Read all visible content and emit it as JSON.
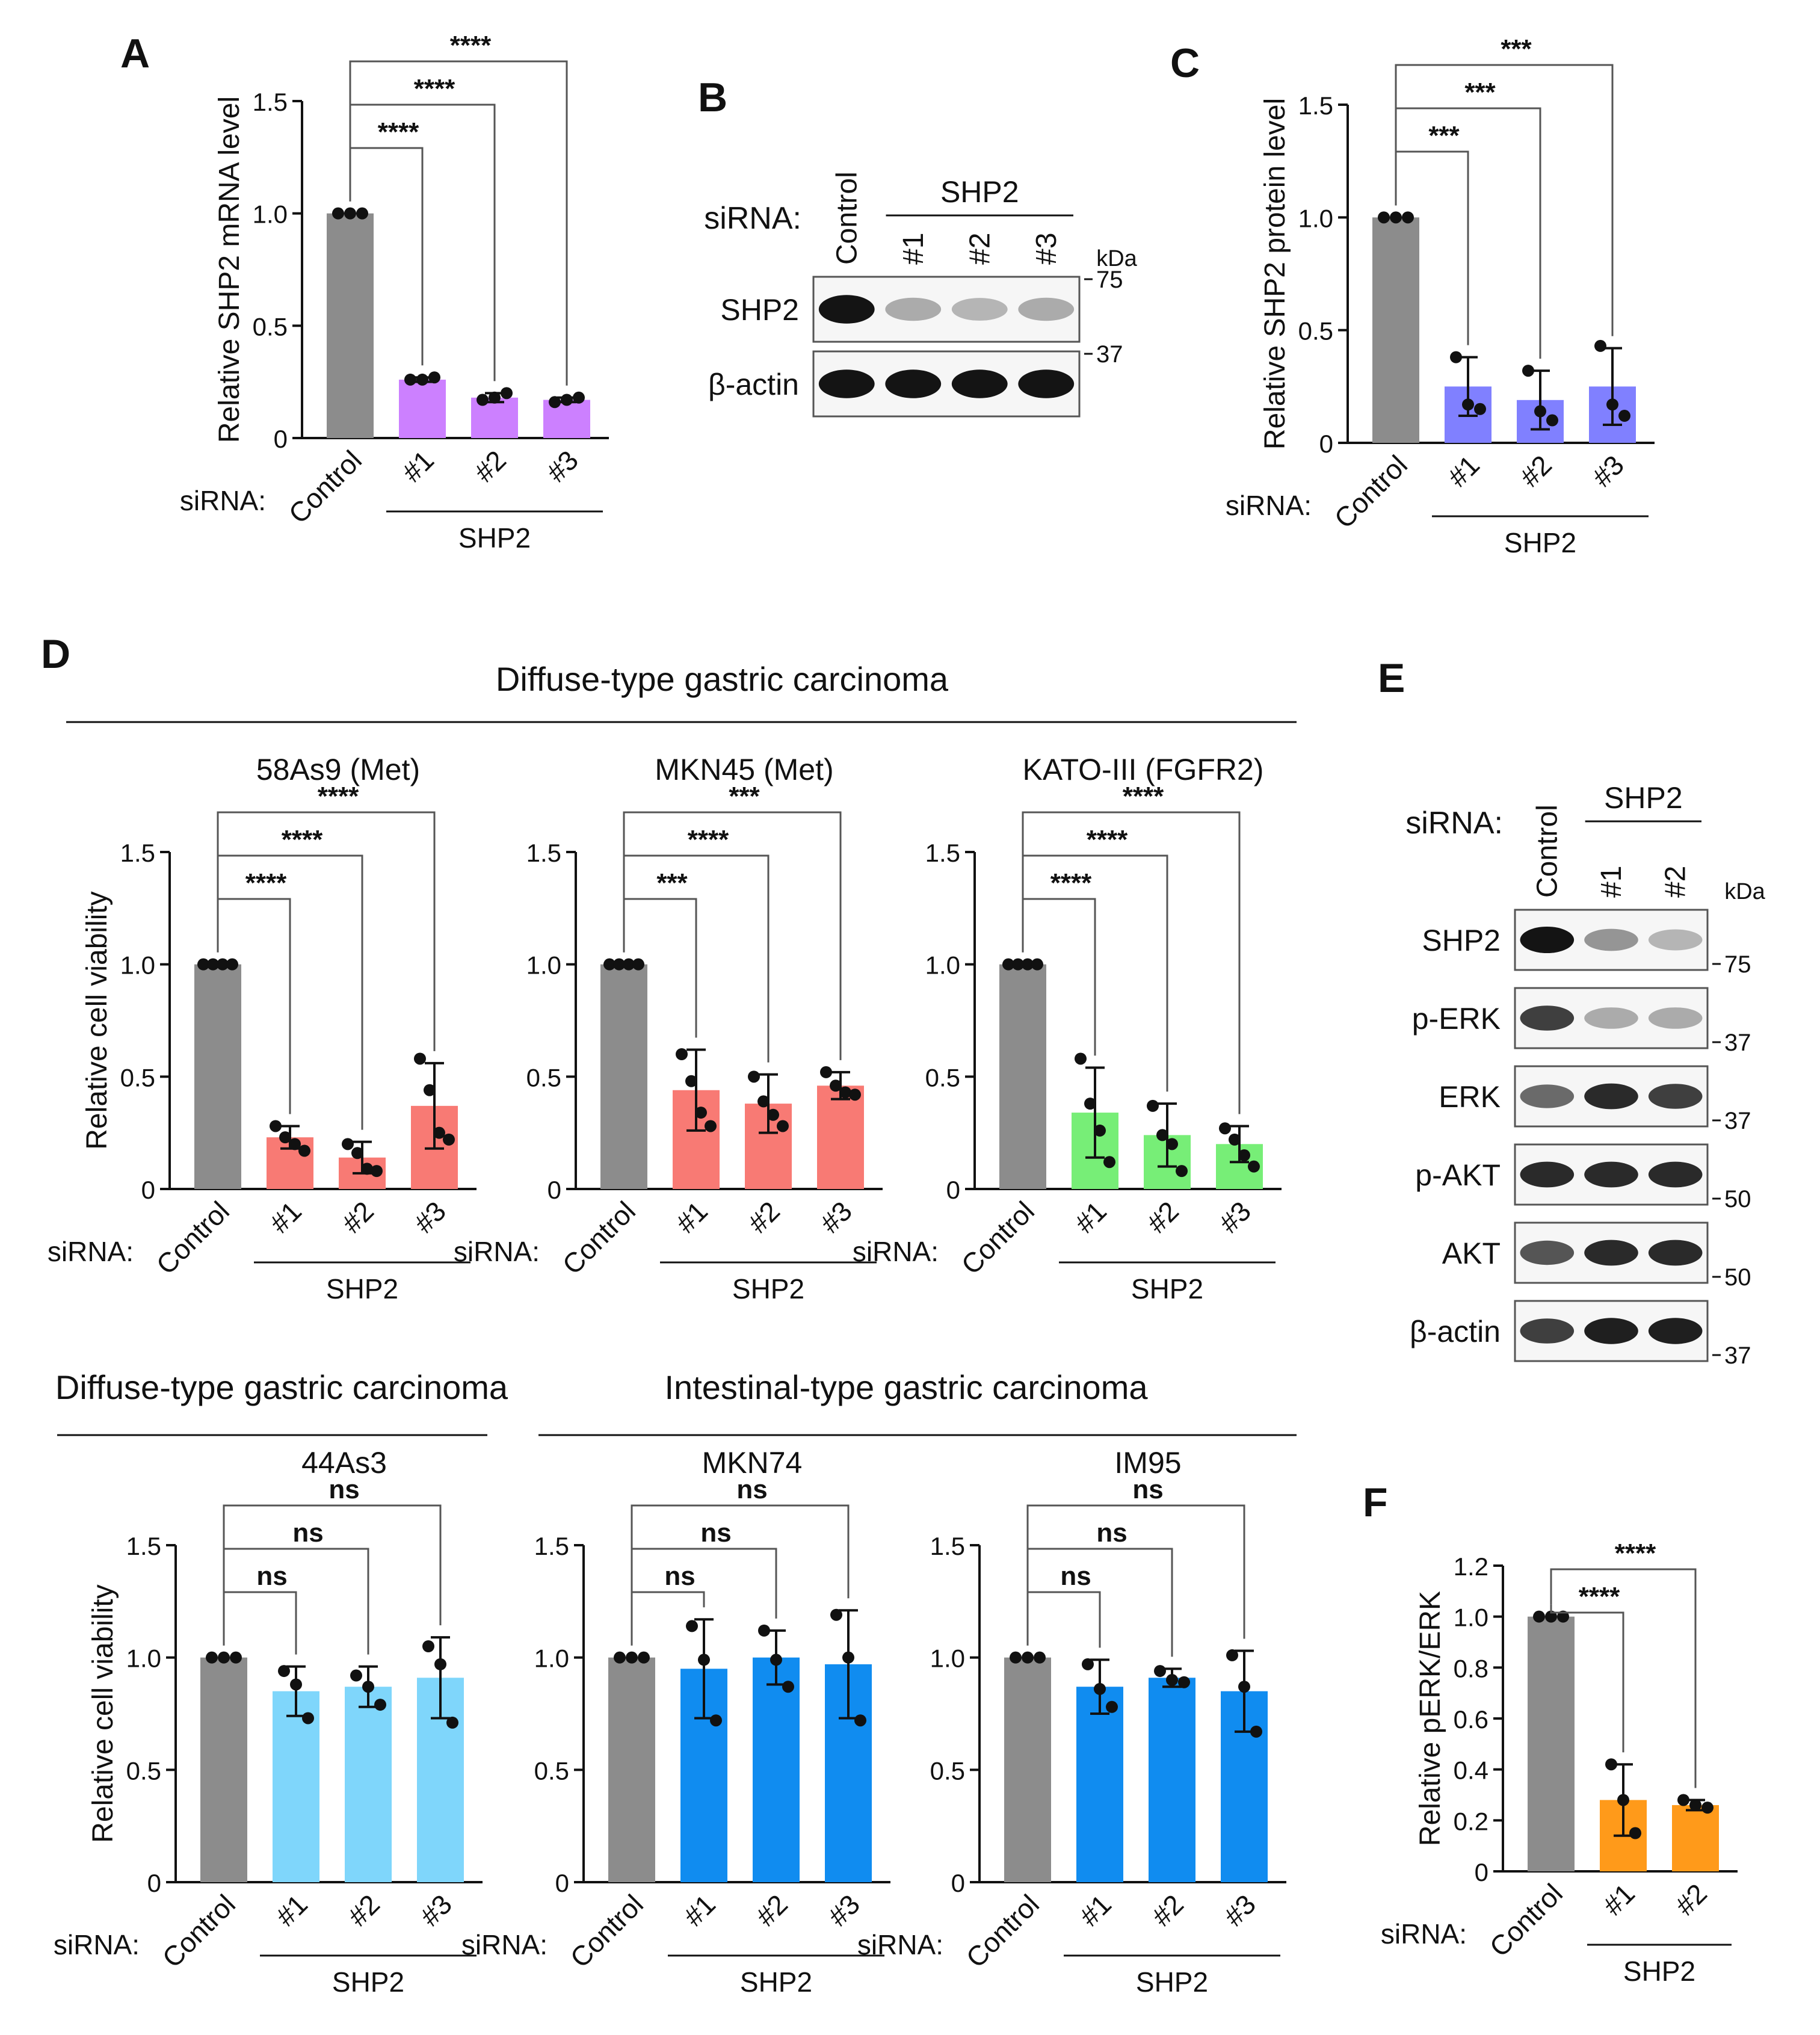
{
  "figure": {
    "panel_labels": {
      "a": "A",
      "b": "B",
      "c": "C",
      "d": "D",
      "e": "E",
      "f": "F"
    },
    "sirna_label": "siRNA:",
    "shp2_label": "SHP2",
    "kda_label": "kDa",
    "section_diffuse": "Diffuse-type gastric carcinoma",
    "section_intestinal": "Intestinal-type gastric carcinoma"
  },
  "colors": {
    "control": "#8c8c8c",
    "A": "#cc80ff",
    "C": "#8080ff",
    "D_top": "#f87a74",
    "D_green": "#77ee77",
    "D_light": "#7fd6fb",
    "D_blue": "#108cf0",
    "F": "#ff9a1a"
  },
  "blot_b": {
    "lanes": [
      "Control",
      "#1",
      "#2",
      "#3"
    ],
    "rows": [
      {
        "label": "SHP2",
        "marker": "75",
        "intensities": [
          1.0,
          0.3,
          0.25,
          0.3
        ]
      },
      {
        "label": "β-actin",
        "marker": "37",
        "intensities": [
          1.0,
          1.0,
          1.0,
          1.0
        ]
      }
    ]
  },
  "blot_e": {
    "lanes": [
      "Control",
      "#1",
      "#2"
    ],
    "rows": [
      {
        "label": "SHP2",
        "marker": "75",
        "intensities": [
          1.0,
          0.4,
          0.25
        ]
      },
      {
        "label": "p-ERK",
        "marker": "37",
        "intensities": [
          0.8,
          0.3,
          0.3
        ]
      },
      {
        "label": "ERK",
        "marker": "37",
        "intensities": [
          0.6,
          0.9,
          0.8
        ]
      },
      {
        "label": "p-AKT",
        "marker": "50",
        "intensities": [
          0.9,
          0.9,
          0.9
        ]
      },
      {
        "label": "AKT",
        "marker": "50",
        "intensities": [
          0.7,
          0.9,
          0.9
        ]
      },
      {
        "label": "β-actin",
        "marker": "37",
        "intensities": [
          0.8,
          0.95,
          0.95
        ]
      }
    ]
  },
  "chart_data": [
    {
      "id": "A",
      "type": "bar",
      "title": "",
      "ylabel": "Relative SHP2 mRNA level",
      "ylim": [
        0,
        1.5
      ],
      "yticks": [
        0,
        0.5,
        1.0,
        1.5
      ],
      "yticklabels": [
        "0",
        "0.5",
        "1.0",
        "1.5"
      ],
      "categories": [
        "Control",
        "#1",
        "#2",
        "#3"
      ],
      "values": [
        1.0,
        0.26,
        0.18,
        0.17
      ],
      "errors": [
        0,
        0.01,
        0.02,
        0.01
      ],
      "points": [
        [
          1.0,
          1.0,
          1.0
        ],
        [
          0.26,
          0.26,
          0.27
        ],
        [
          0.17,
          0.18,
          0.2
        ],
        [
          0.16,
          0.17,
          0.18
        ]
      ],
      "color_key": "A",
      "significance": [
        {
          "target": 1,
          "label": "****"
        },
        {
          "target": 2,
          "label": "****"
        },
        {
          "target": 3,
          "label": "****"
        }
      ]
    },
    {
      "id": "C",
      "type": "bar",
      "title": "",
      "ylabel": "Relative SHP2 protein level",
      "ylim": [
        0,
        1.5
      ],
      "yticks": [
        0,
        0.5,
        1.0,
        1.5
      ],
      "yticklabels": [
        "0",
        "0.5",
        "1.0",
        "1.5"
      ],
      "categories": [
        "Control",
        "#1",
        "#2",
        "#3"
      ],
      "values": [
        1.0,
        0.25,
        0.19,
        0.25
      ],
      "errors": [
        0,
        0.13,
        0.13,
        0.17
      ],
      "points": [
        [
          1.0,
          1.0,
          1.0
        ],
        [
          0.38,
          0.17,
          0.15
        ],
        [
          0.32,
          0.14,
          0.1
        ],
        [
          0.43,
          0.17,
          0.12
        ]
      ],
      "color_key": "C",
      "significance": [
        {
          "target": 1,
          "label": "***"
        },
        {
          "target": 2,
          "label": "***"
        },
        {
          "target": 3,
          "label": "***"
        }
      ]
    },
    {
      "id": "D1",
      "type": "bar",
      "title": "58As9 (Met)",
      "ylabel": "Relative cell viability",
      "ylim": [
        0,
        1.5
      ],
      "yticks": [
        0,
        0.5,
        1.0,
        1.5
      ],
      "yticklabels": [
        "0",
        "0.5",
        "1.0",
        "1.5"
      ],
      "categories": [
        "Control",
        "#1",
        "#2",
        "#3"
      ],
      "values": [
        1.0,
        0.23,
        0.14,
        0.37
      ],
      "errors": [
        0,
        0.05,
        0.07,
        0.19
      ],
      "points": [
        [
          1.0,
          1.0,
          1.0,
          1.0
        ],
        [
          0.28,
          0.23,
          0.2,
          0.17
        ],
        [
          0.2,
          0.16,
          0.09,
          0.08
        ],
        [
          0.58,
          0.44,
          0.25,
          0.22
        ]
      ],
      "color_key": "D_top",
      "significance": [
        {
          "target": 1,
          "label": "****"
        },
        {
          "target": 2,
          "label": "****"
        },
        {
          "target": 3,
          "label": "****"
        }
      ]
    },
    {
      "id": "D2",
      "type": "bar",
      "title": "MKN45 (Met)",
      "ylabel": "",
      "ylim": [
        0,
        1.5
      ],
      "yticks": [
        0,
        0.5,
        1.0,
        1.5
      ],
      "yticklabels": [
        "0",
        "0.5",
        "1.0",
        "1.5"
      ],
      "categories": [
        "Control",
        "#1",
        "#2",
        "#3"
      ],
      "values": [
        1.0,
        0.44,
        0.38,
        0.46
      ],
      "errors": [
        0,
        0.18,
        0.13,
        0.06
      ],
      "points": [
        [
          1.0,
          1.0,
          1.0,
          1.0
        ],
        [
          0.6,
          0.48,
          0.34,
          0.28
        ],
        [
          0.5,
          0.39,
          0.33,
          0.28
        ],
        [
          0.52,
          0.46,
          0.43,
          0.42
        ]
      ],
      "color_key": "D_top",
      "significance": [
        {
          "target": 1,
          "label": "***"
        },
        {
          "target": 2,
          "label": "****"
        },
        {
          "target": 3,
          "label": "***"
        }
      ]
    },
    {
      "id": "D3",
      "type": "bar",
      "title": "KATO-III (FGFR2)",
      "ylabel": "",
      "ylim": [
        0,
        1.5
      ],
      "yticks": [
        0,
        0.5,
        1.0,
        1.5
      ],
      "yticklabels": [
        "0",
        "0.5",
        "1.0",
        "1.5"
      ],
      "categories": [
        "Control",
        "#1",
        "#2",
        "#3"
      ],
      "values": [
        1.0,
        0.34,
        0.24,
        0.2
      ],
      "errors": [
        0,
        0.2,
        0.14,
        0.08
      ],
      "points": [
        [
          1.0,
          1.0,
          1.0,
          1.0
        ],
        [
          0.58,
          0.38,
          0.26,
          0.12
        ],
        [
          0.37,
          0.24,
          0.2,
          0.08
        ],
        [
          0.27,
          0.22,
          0.15,
          0.1
        ]
      ],
      "color_key": "D_green",
      "significance": [
        {
          "target": 1,
          "label": "****"
        },
        {
          "target": 2,
          "label": "****"
        },
        {
          "target": 3,
          "label": "****"
        }
      ]
    },
    {
      "id": "D4",
      "type": "bar",
      "title": "44As3",
      "ylabel": "Relative cell viability",
      "ylim": [
        0,
        1.5
      ],
      "yticks": [
        0,
        0.5,
        1.0,
        1.5
      ],
      "yticklabels": [
        "0",
        "0.5",
        "1.0",
        "1.5"
      ],
      "categories": [
        "Control",
        "#1",
        "#2",
        "#3"
      ],
      "values": [
        1.0,
        0.85,
        0.87,
        0.91
      ],
      "errors": [
        0,
        0.11,
        0.09,
        0.18
      ],
      "points": [
        [
          1.0,
          1.0,
          1.0
        ],
        [
          0.94,
          0.88,
          0.73
        ],
        [
          0.92,
          0.87,
          0.79
        ],
        [
          1.05,
          0.97,
          0.71
        ]
      ],
      "color_key": "D_light",
      "significance": [
        {
          "target": 1,
          "label": "ns"
        },
        {
          "target": 2,
          "label": "ns"
        },
        {
          "target": 3,
          "label": "ns"
        }
      ]
    },
    {
      "id": "D5",
      "type": "bar",
      "title": "MKN74",
      "ylabel": "",
      "ylim": [
        0,
        1.5
      ],
      "yticks": [
        0,
        0.5,
        1.0,
        1.5
      ],
      "yticklabels": [
        "0",
        "0.5",
        "1.0",
        "1.5"
      ],
      "categories": [
        "Control",
        "#1",
        "#2",
        "#3"
      ],
      "values": [
        1.0,
        0.95,
        1.0,
        0.97
      ],
      "errors": [
        0,
        0.22,
        0.12,
        0.24
      ],
      "points": [
        [
          1.0,
          1.0,
          1.0
        ],
        [
          1.14,
          0.99,
          0.72
        ],
        [
          1.12,
          0.99,
          0.87
        ],
        [
          1.19,
          1.0,
          0.72
        ]
      ],
      "color_key": "D_blue",
      "significance": [
        {
          "target": 1,
          "label": "ns"
        },
        {
          "target": 2,
          "label": "ns"
        },
        {
          "target": 3,
          "label": "ns"
        }
      ]
    },
    {
      "id": "D6",
      "type": "bar",
      "title": "IM95",
      "ylabel": "",
      "ylim": [
        0,
        1.5
      ],
      "yticks": [
        0,
        0.5,
        1.0,
        1.5
      ],
      "yticklabels": [
        "0",
        "0.5",
        "1.0",
        "1.5"
      ],
      "categories": [
        "Control",
        "#1",
        "#2",
        "#3"
      ],
      "values": [
        1.0,
        0.87,
        0.91,
        0.85
      ],
      "errors": [
        0,
        0.12,
        0.04,
        0.18
      ],
      "points": [
        [
          1.0,
          1.0,
          1.0
        ],
        [
          0.97,
          0.86,
          0.78
        ],
        [
          0.94,
          0.9,
          0.89
        ],
        [
          1.01,
          0.87,
          0.67
        ]
      ],
      "color_key": "D_blue",
      "significance": [
        {
          "target": 1,
          "label": "ns"
        },
        {
          "target": 2,
          "label": "ns"
        },
        {
          "target": 3,
          "label": "ns"
        }
      ]
    },
    {
      "id": "F",
      "type": "bar",
      "title": "",
      "ylabel": "Relative pERK/ERK",
      "ylim": [
        0,
        1.2
      ],
      "yticks": [
        0,
        0.2,
        0.4,
        0.6,
        0.8,
        1.0,
        1.2
      ],
      "yticklabels": [
        "0",
        "0.2",
        "0.4",
        "0.6",
        "0.8",
        "1.0",
        "1.2"
      ],
      "categories": [
        "Control",
        "#1",
        "#2"
      ],
      "values": [
        1.0,
        0.28,
        0.26
      ],
      "errors": [
        0,
        0.14,
        0.02
      ],
      "points": [
        [
          1.0,
          1.0,
          1.0
        ],
        [
          0.42,
          0.28,
          0.15
        ],
        [
          0.28,
          0.26,
          0.25
        ]
      ],
      "color_key": "F",
      "significance": [
        {
          "target": 1,
          "label": "****"
        },
        {
          "target": 2,
          "label": "****"
        }
      ]
    }
  ]
}
